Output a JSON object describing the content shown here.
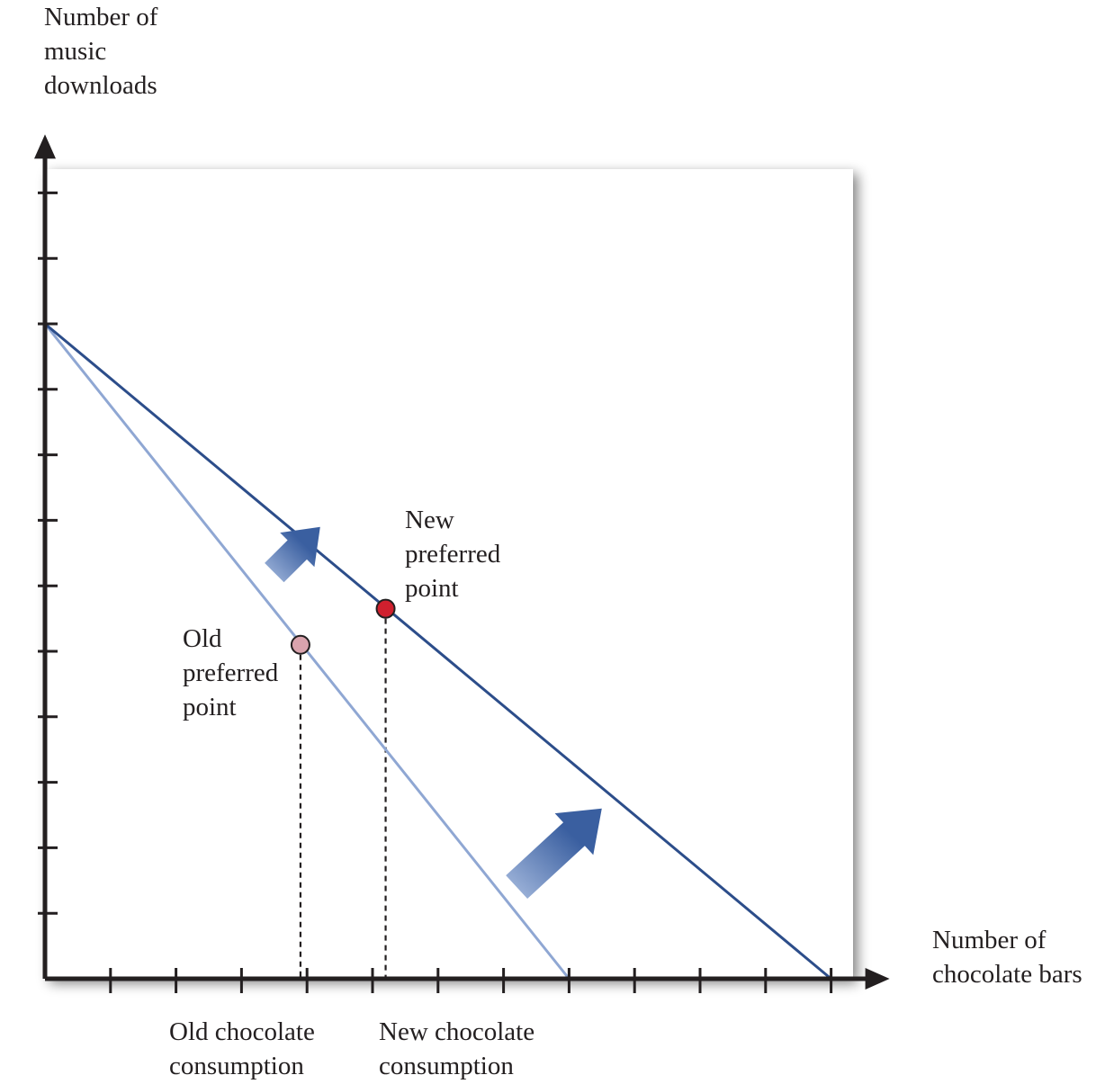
{
  "chart_data": {
    "type": "line",
    "title": "",
    "ylabel": [
      "Number of",
      "music",
      "downloads"
    ],
    "xlabel": [
      "Number of",
      "chocolate bars"
    ],
    "xlim": [
      0,
      12
    ],
    "ylim": [
      0,
      12
    ],
    "grid": false,
    "series": [
      {
        "values": [
          [
            0,
            10
          ],
          [
            8,
            0
          ]
        ],
        "color": "#8fa7d3"
      },
      {
        "values": [
          [
            0,
            10
          ],
          [
            12,
            0
          ]
        ],
        "color": "#2c4d8a"
      }
    ],
    "points": [
      {
        "label": [
          "Old",
          "preferred",
          "point"
        ],
        "x": 3.9,
        "y": 5.1,
        "color": "#d9a3ad"
      },
      {
        "label": [
          "New",
          "preferred",
          "point"
        ],
        "x": 5.2,
        "y": 5.65,
        "color": "#d0202e"
      }
    ],
    "x_markers": [
      {
        "label": [
          "Old chocolate",
          "consumption"
        ],
        "x": 3.9
      },
      {
        "label": [
          "New chocolate",
          "consumption"
        ],
        "x": 5.2
      }
    ],
    "arrows": [
      {
        "from": [
          3.5,
          6.2
        ],
        "to": [
          4.2,
          6.9
        ]
      },
      {
        "from": [
          7.2,
          1.4
        ],
        "to": [
          8.5,
          2.6
        ]
      }
    ],
    "shift_arrow_color": "#3a5fa0"
  }
}
